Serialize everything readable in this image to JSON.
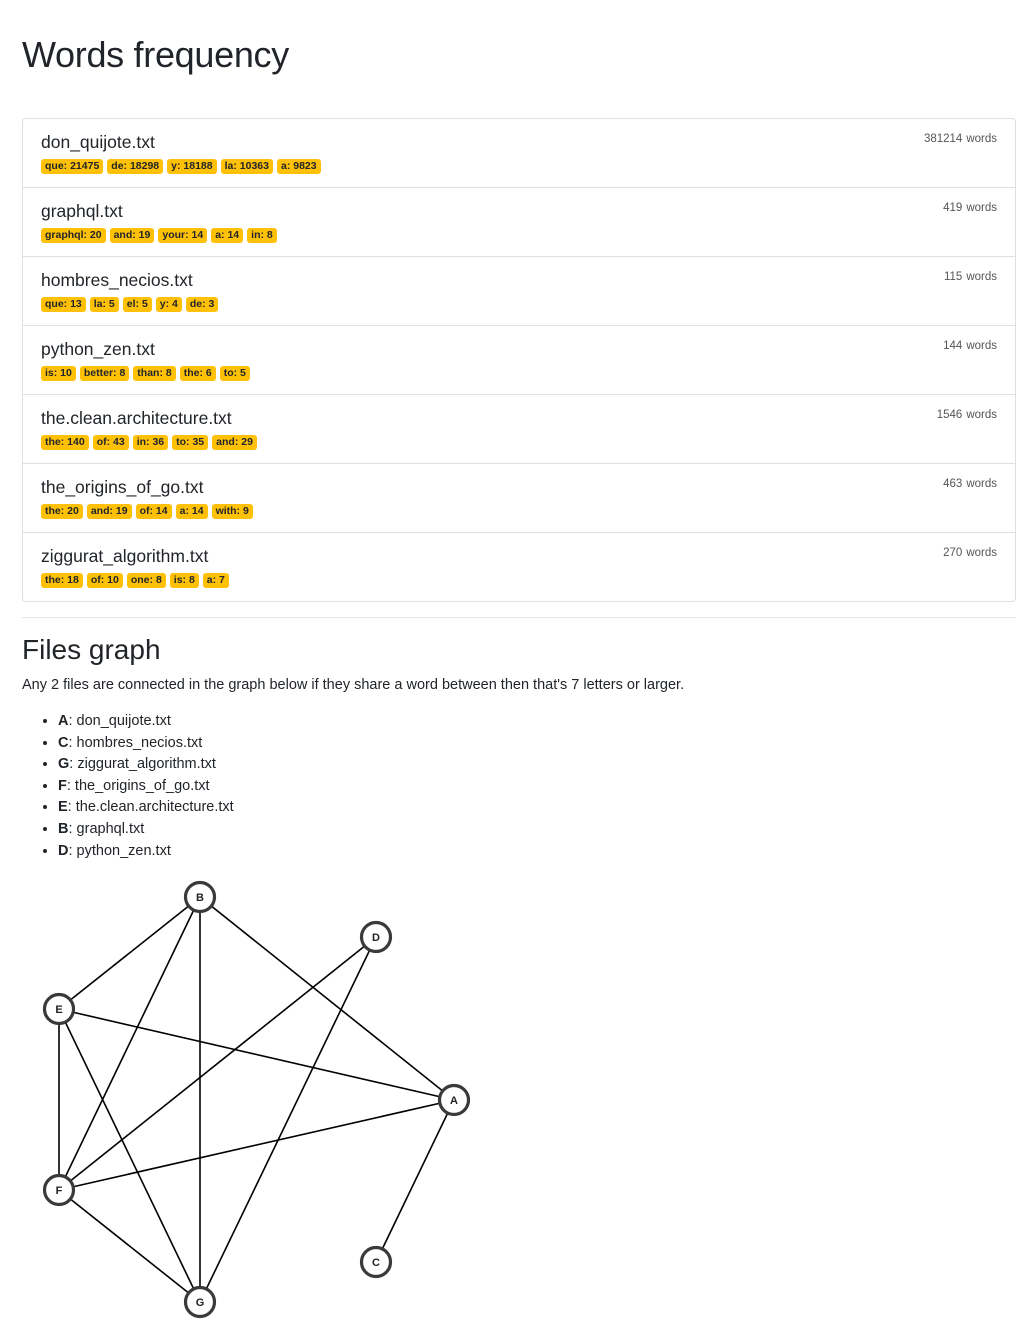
{
  "page_title": "Words frequency",
  "words_suffix": "words",
  "files": [
    {
      "name": "don_quijote.txt",
      "count": "381214",
      "words": [
        "que: 21475",
        "de: 18298",
        "y: 18188",
        "la: 10363",
        "a: 9823"
      ]
    },
    {
      "name": "graphql.txt",
      "count": "419",
      "words": [
        "graphql: 20",
        "and: 19",
        "your: 14",
        "a: 14",
        "in: 8"
      ]
    },
    {
      "name": "hombres_necios.txt",
      "count": "115",
      "words": [
        "que: 13",
        "la: 5",
        "el: 5",
        "y: 4",
        "de: 3"
      ]
    },
    {
      "name": "python_zen.txt",
      "count": "144",
      "words": [
        "is: 10",
        "better: 8",
        "than: 8",
        "the: 6",
        "to: 5"
      ]
    },
    {
      "name": "the.clean.architecture.txt",
      "count": "1546",
      "words": [
        "the: 140",
        "of: 43",
        "in: 36",
        "to: 35",
        "and: 29"
      ]
    },
    {
      "name": "the_origins_of_go.txt",
      "count": "463",
      "words": [
        "the: 20",
        "and: 19",
        "of: 14",
        "a: 14",
        "with: 9"
      ]
    },
    {
      "name": "ziggurat_algorithm.txt",
      "count": "270",
      "words": [
        "the: 18",
        "of: 10",
        "one: 8",
        "is: 8",
        "a: 7"
      ]
    }
  ],
  "graph_section": {
    "title": "Files graph",
    "description": "Any 2 files are connected in the graph below if they share a word between then that's 7 letters or larger.",
    "legend": [
      {
        "key": "A",
        "file": "don_quijote.txt"
      },
      {
        "key": "C",
        "file": "hombres_necios.txt"
      },
      {
        "key": "G",
        "file": "ziggurat_algorithm.txt"
      },
      {
        "key": "F",
        "file": "the_origins_of_go.txt"
      },
      {
        "key": "E",
        "file": "the.clean.architecture.txt"
      },
      {
        "key": "B",
        "file": "graphql.txt"
      },
      {
        "key": "D",
        "file": "python_zen.txt"
      }
    ]
  },
  "graph": {
    "nodes": [
      "A",
      "B",
      "C",
      "D",
      "E",
      "F",
      "G"
    ],
    "edges": [
      [
        "B",
        "E"
      ],
      [
        "B",
        "F"
      ],
      [
        "B",
        "G"
      ],
      [
        "B",
        "A"
      ],
      [
        "D",
        "F"
      ],
      [
        "D",
        "G"
      ],
      [
        "E",
        "F"
      ],
      [
        "E",
        "G"
      ],
      [
        "E",
        "A"
      ],
      [
        "A",
        "F"
      ],
      [
        "A",
        "C"
      ],
      [
        "F",
        "G"
      ]
    ]
  }
}
